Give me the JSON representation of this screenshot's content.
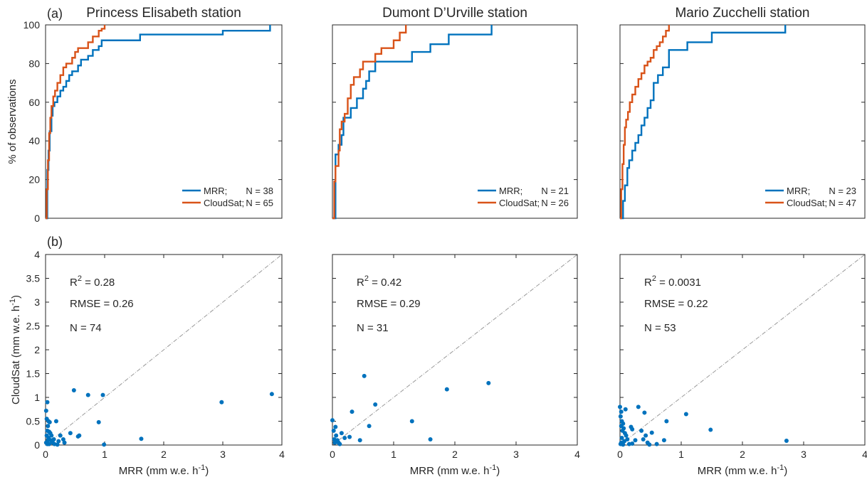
{
  "figure": {
    "panel_a_tag": "(a)",
    "panel_b_tag": "(b)"
  },
  "colors": {
    "mrr": "#0072BD",
    "cloudsat": "#D95319",
    "scatter": "#0072BD",
    "one_to_one": "#9a9a9a"
  },
  "chart_data": [
    {
      "type": "line",
      "title": "Princess Elisabeth station",
      "ylabel": "% of observations",
      "ylim": [
        0,
        100
      ],
      "yticks": [
        "0",
        "20",
        "40",
        "60",
        "80",
        "100"
      ],
      "xlim": [
        0,
        4
      ],
      "legend_position": "bottom-right",
      "legend": [
        {
          "name": "MRR;",
          "n_label": "N = 38"
        },
        {
          "name": "CloudSat;",
          "n_label": "N = 65"
        }
      ],
      "series": [
        {
          "name": "MRR",
          "x": [
            0.0,
            0.03,
            0.05,
            0.07,
            0.1,
            0.12,
            0.15,
            0.2,
            0.25,
            0.3,
            0.35,
            0.4,
            0.45,
            0.55,
            0.6,
            0.72,
            0.8,
            0.9,
            0.95,
            1.0,
            1.6,
            3.0,
            3.8
          ],
          "y": [
            0,
            25,
            35,
            45,
            53,
            58,
            60,
            63,
            66,
            68,
            71,
            74,
            76,
            79,
            82,
            84,
            87,
            89,
            92,
            92,
            95,
            97,
            100
          ]
        },
        {
          "name": "CloudSat",
          "x": [
            0.0,
            0.02,
            0.04,
            0.06,
            0.08,
            0.1,
            0.13,
            0.16,
            0.2,
            0.25,
            0.3,
            0.35,
            0.45,
            0.5,
            0.55,
            0.6,
            0.72,
            0.8,
            0.9,
            0.95,
            1.0
          ],
          "y": [
            0,
            15,
            30,
            44,
            52,
            58,
            63,
            66,
            70,
            74,
            78,
            80,
            83,
            86,
            88,
            88,
            91,
            94,
            97,
            98,
            100
          ]
        }
      ]
    },
    {
      "type": "line",
      "title": "Dumont D’Urville station",
      "ylim": [
        0,
        100
      ],
      "xlim": [
        0,
        4
      ],
      "legend_position": "bottom-right",
      "legend": [
        {
          "name": "MRR;",
          "n_label": "N = 21"
        },
        {
          "name": "CloudSat;",
          "n_label": "N = 26"
        }
      ],
      "series": [
        {
          "name": "MRR",
          "x": [
            0.0,
            0.05,
            0.1,
            0.15,
            0.18,
            0.3,
            0.4,
            0.5,
            0.55,
            0.6,
            0.7,
            1.3,
            1.6,
            1.9,
            2.6
          ],
          "y": [
            0,
            33,
            38,
            43,
            52,
            57,
            62,
            67,
            71,
            76,
            81,
            86,
            90,
            95,
            100
          ]
        },
        {
          "name": "CloudSat",
          "x": [
            0.0,
            0.03,
            0.05,
            0.1,
            0.12,
            0.15,
            0.2,
            0.25,
            0.3,
            0.35,
            0.45,
            0.5,
            0.7,
            0.8,
            1.0,
            1.1,
            1.2
          ],
          "y": [
            0,
            19,
            27,
            35,
            46,
            50,
            54,
            62,
            69,
            73,
            77,
            81,
            85,
            88,
            92,
            96,
            100
          ]
        }
      ]
    },
    {
      "type": "line",
      "title": "Mario Zucchelli station",
      "ylim": [
        0,
        100
      ],
      "xlim": [
        0,
        4
      ],
      "legend_position": "bottom-right",
      "legend": [
        {
          "name": "MRR;",
          "n_label": "N = 23"
        },
        {
          "name": "CloudSat;",
          "n_label": "N = 47"
        }
      ],
      "series": [
        {
          "name": "MRR",
          "x": [
            0.0,
            0.05,
            0.08,
            0.12,
            0.15,
            0.2,
            0.25,
            0.3,
            0.35,
            0.4,
            0.45,
            0.5,
            0.55,
            0.62,
            0.7,
            0.8,
            1.1,
            1.5,
            2.7
          ],
          "y": [
            0,
            9,
            17,
            26,
            30,
            35,
            39,
            43,
            48,
            52,
            57,
            61,
            70,
            74,
            78,
            87,
            91,
            96,
            100
          ]
        },
        {
          "name": "CloudSat",
          "x": [
            0.0,
            0.02,
            0.04,
            0.06,
            0.08,
            0.1,
            0.13,
            0.16,
            0.2,
            0.25,
            0.3,
            0.35,
            0.4,
            0.45,
            0.5,
            0.55,
            0.6,
            0.65,
            0.7,
            0.75,
            0.8
          ],
          "y": [
            0,
            15,
            28,
            38,
            47,
            51,
            55,
            60,
            64,
            68,
            72,
            75,
            79,
            81,
            83,
            87,
            89,
            91,
            94,
            97,
            100
          ]
        }
      ]
    },
    {
      "type": "scatter",
      "xlabel": "MRR (mm w.e. h",
      "ylabel": "CloudSat (mm w.e. h",
      "unit_exponent": "-1",
      "unit_close": ")",
      "xlim": [
        0,
        4
      ],
      "ylim": [
        0,
        4
      ],
      "xticks": [
        "0",
        "1",
        "2",
        "3",
        "4"
      ],
      "yticks": [
        "0",
        "0.5",
        "1",
        "1.5",
        "2",
        "2.5",
        "3",
        "3.5",
        "4"
      ],
      "one_to_one_line": true,
      "stats": {
        "r2_label": "R",
        "r2_exp": "2",
        "r2_value": " = 0.28",
        "rmse": "RMSE = 0.26",
        "n": "N = 74"
      },
      "points": [
        [
          0.01,
          0.72
        ],
        [
          0.03,
          0.9
        ],
        [
          0.02,
          0.55
        ],
        [
          0.05,
          0.5
        ],
        [
          0.07,
          0.48
        ],
        [
          0.04,
          0.4
        ],
        [
          0.03,
          0.3
        ],
        [
          0.06,
          0.28
        ],
        [
          0.08,
          0.25
        ],
        [
          0.02,
          0.2
        ],
        [
          0.05,
          0.15
        ],
        [
          0.09,
          0.1
        ],
        [
          0.12,
          0.05
        ],
        [
          0.03,
          0.02
        ],
        [
          0.15,
          0.02
        ],
        [
          0.2,
          0.01
        ],
        [
          0.11,
          0.08
        ],
        [
          0.18,
          0.5
        ],
        [
          0.25,
          0.2
        ],
        [
          0.3,
          0.12
        ],
        [
          0.32,
          0.05
        ],
        [
          0.42,
          0.25
        ],
        [
          0.48,
          1.15
        ],
        [
          0.55,
          0.18
        ],
        [
          0.57,
          0.2
        ],
        [
          0.72,
          1.05
        ],
        [
          0.9,
          0.48
        ],
        [
          0.97,
          1.05
        ],
        [
          0.99,
          0.01
        ],
        [
          1.62,
          0.13
        ],
        [
          2.98,
          0.9
        ],
        [
          3.83,
          1.07
        ],
        [
          0.01,
          0.05
        ],
        [
          0.04,
          0.1
        ],
        [
          0.06,
          0.02
        ],
        [
          0.1,
          0.2
        ],
        [
          0.14,
          0.12
        ],
        [
          0.22,
          0.08
        ]
      ]
    },
    {
      "type": "scatter",
      "xlim": [
        0,
        4
      ],
      "ylim": [
        0,
        4
      ],
      "xticks": [
        "0",
        "1",
        "2",
        "3",
        "4"
      ],
      "xlabel": "MRR (mm w.e. h",
      "unit_exponent": "-1",
      "unit_close": ")",
      "one_to_one_line": true,
      "stats": {
        "r2_label": "R",
        "r2_exp": "2",
        "r2_value": " = 0.42",
        "rmse": "RMSE = 0.29",
        "n": "N = 31"
      },
      "points": [
        [
          0.0,
          0.52
        ],
        [
          0.02,
          0.3
        ],
        [
          0.05,
          0.38
        ],
        [
          0.06,
          0.2
        ],
        [
          0.08,
          0.1
        ],
        [
          0.1,
          0.05
        ],
        [
          0.03,
          0.12
        ],
        [
          0.15,
          0.25
        ],
        [
          0.2,
          0.15
        ],
        [
          0.28,
          0.17
        ],
        [
          0.32,
          0.7
        ],
        [
          0.45,
          0.1
        ],
        [
          0.52,
          1.45
        ],
        [
          0.6,
          0.4
        ],
        [
          0.7,
          0.85
        ],
        [
          1.3,
          0.5
        ],
        [
          1.6,
          0.12
        ],
        [
          1.87,
          1.17
        ],
        [
          2.55,
          1.3
        ],
        [
          0.12,
          0.02
        ],
        [
          0.04,
          0.05
        ]
      ]
    },
    {
      "type": "scatter",
      "xlim": [
        0,
        4
      ],
      "ylim": [
        0,
        4
      ],
      "xticks": [
        "0",
        "1",
        "2",
        "3",
        "4"
      ],
      "xlabel": "MRR (mm w.e. h",
      "unit_exponent": "-1",
      "unit_close": ")",
      "one_to_one_line": true,
      "stats": {
        "r2_label": "R",
        "r2_exp": "2",
        "r2_value": " = 0.0031",
        "rmse": "RMSE = 0.22",
        "n": "N = 53"
      },
      "points": [
        [
          0.0,
          0.8
        ],
        [
          0.02,
          0.7
        ],
        [
          0.01,
          0.6
        ],
        [
          0.03,
          0.5
        ],
        [
          0.05,
          0.45
        ],
        [
          0.02,
          0.4
        ],
        [
          0.06,
          0.35
        ],
        [
          0.04,
          0.3
        ],
        [
          0.08,
          0.25
        ],
        [
          0.1,
          0.2
        ],
        [
          0.03,
          0.15
        ],
        [
          0.12,
          0.12
        ],
        [
          0.07,
          0.08
        ],
        [
          0.02,
          0.05
        ],
        [
          0.15,
          0.02
        ],
        [
          0.2,
          0.03
        ],
        [
          0.09,
          0.75
        ],
        [
          0.18,
          0.38
        ],
        [
          0.2,
          0.33
        ],
        [
          0.3,
          0.8
        ],
        [
          0.35,
          0.3
        ],
        [
          0.38,
          0.12
        ],
        [
          0.4,
          0.68
        ],
        [
          0.42,
          0.2
        ],
        [
          0.45,
          0.05
        ],
        [
          0.48,
          0.01
        ],
        [
          0.52,
          0.26
        ],
        [
          0.6,
          0.02
        ],
        [
          0.72,
          0.1
        ],
        [
          0.76,
          0.5
        ],
        [
          1.08,
          0.65
        ],
        [
          1.48,
          0.32
        ],
        [
          2.72,
          0.09
        ],
        [
          0.01,
          0.02
        ],
        [
          0.05,
          0.01
        ],
        [
          0.25,
          0.1
        ]
      ]
    }
  ]
}
